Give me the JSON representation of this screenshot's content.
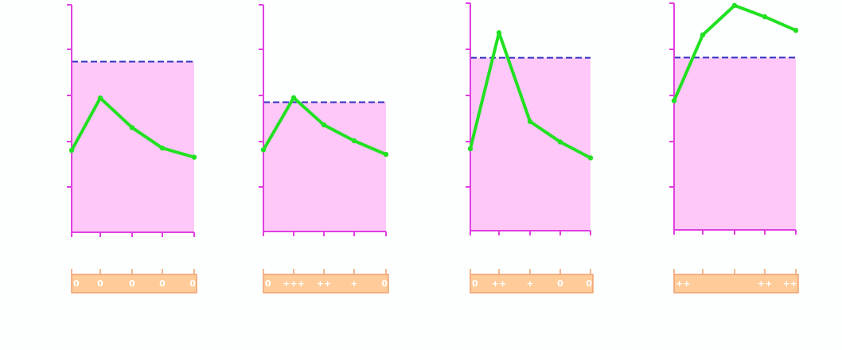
{
  "colors": {
    "axis": "#e040e0",
    "shade": "#ffc8f8",
    "line": "#22e022",
    "threshold": "#3030c0",
    "strip_fill": "#ffcc99",
    "strip_stroke": "#f0a070",
    "score_text": "#ffffff"
  },
  "chart_data": [
    {
      "type": "line",
      "x": [
        0,
        1,
        2,
        3,
        4
      ],
      "ylim": [
        0,
        5
      ],
      "threshold": 3.75,
      "series": [
        {
          "values": [
            1.8,
            2.95,
            2.3,
            1.85,
            1.65
          ]
        }
      ],
      "scores": [
        "0",
        "0",
        "0",
        "0",
        "0"
      ]
    },
    {
      "type": "line",
      "x": [
        0,
        1,
        2,
        3,
        4
      ],
      "ylim": [
        0,
        5
      ],
      "threshold": 2.85,
      "series": [
        {
          "values": [
            1.8,
            2.95,
            2.35,
            2.0,
            1.7
          ]
        }
      ],
      "scores": [
        "0",
        "+++",
        "++",
        "+",
        "0"
      ]
    },
    {
      "type": "line",
      "x": [
        0,
        1,
        2,
        3,
        4
      ],
      "ylim": [
        0,
        5
      ],
      "threshold": 3.8,
      "series": [
        {
          "values": [
            1.8,
            4.35,
            2.4,
            1.95,
            1.6
          ]
        }
      ],
      "scores": [
        "0",
        "++",
        "+",
        "0",
        "0"
      ]
    },
    {
      "type": "line",
      "x": [
        0,
        1,
        2,
        3,
        4
      ],
      "ylim": [
        0,
        5
      ],
      "threshold": 3.8,
      "series": [
        {
          "values": [
            2.85,
            4.3,
            4.95,
            4.7,
            4.4
          ]
        }
      ],
      "scores": [
        "++",
        "",
        "",
        "++",
        "++"
      ]
    }
  ]
}
